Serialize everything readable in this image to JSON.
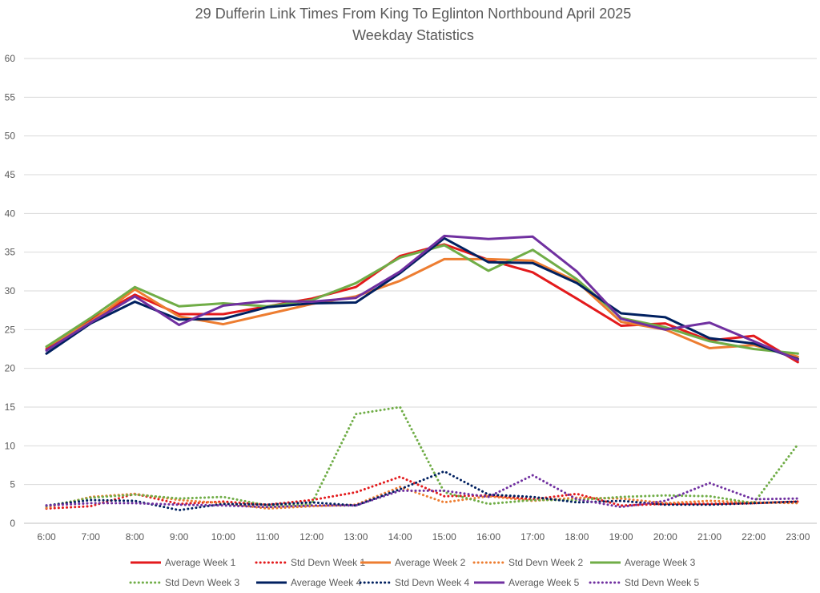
{
  "chart_data": {
    "type": "line",
    "title": "29 Dufferin Link Times From King To Eglinton Northbound April 2025",
    "subtitle": "Weekday Statistics",
    "xlabel": "",
    "ylabel": "",
    "ylim": [
      0,
      60
    ],
    "yticks": [
      0,
      5,
      10,
      15,
      20,
      25,
      30,
      35,
      40,
      45,
      50,
      55,
      60
    ],
    "grid": true,
    "legend_position": "bottom",
    "categories": [
      "6:00",
      "7:00",
      "8:00",
      "9:00",
      "10:00",
      "11:00",
      "12:00",
      "13:00",
      "14:00",
      "15:00",
      "16:00",
      "17:00",
      "18:00",
      "19:00",
      "20:00",
      "21:00",
      "22:00",
      "23:00"
    ],
    "series": [
      {
        "name": "Average Week 1",
        "style": "solid",
        "color": "#e31a1c",
        "values": [
          22.5,
          26.3,
          29.5,
          27.0,
          27.0,
          28.0,
          29.0,
          30.5,
          34.5,
          36.0,
          34.0,
          32.4,
          29.0,
          25.5,
          25.8,
          23.6,
          24.2,
          20.8
        ]
      },
      {
        "name": "Std Devn Week 1",
        "style": "dotted",
        "color": "#e31a1c",
        "values": [
          1.9,
          2.2,
          3.8,
          2.5,
          2.8,
          2.4,
          3.0,
          4.0,
          6.0,
          3.5,
          3.6,
          3.1,
          3.8,
          2.3,
          2.5,
          2.5,
          2.6,
          2.8
        ]
      },
      {
        "name": "Average Week 2",
        "style": "solid",
        "color": "#ed7d31",
        "values": [
          22.8,
          26.0,
          30.2,
          26.7,
          25.7,
          27.0,
          28.3,
          29.3,
          31.3,
          34.1,
          34.1,
          33.9,
          31.2,
          26.0,
          25.0,
          22.6,
          23.0,
          21.5
        ]
      },
      {
        "name": "Std Devn Week 2",
        "style": "dotted",
        "color": "#ed7d31",
        "values": [
          2.0,
          3.4,
          3.8,
          3.0,
          2.6,
          1.9,
          2.2,
          2.4,
          4.7,
          2.7,
          3.5,
          2.9,
          3.3,
          3.2,
          2.6,
          2.9,
          2.7,
          2.6
        ]
      },
      {
        "name": "Average Week 3",
        "style": "solid",
        "color": "#70ad47",
        "values": [
          22.8,
          26.5,
          30.5,
          28.0,
          28.4,
          28.0,
          28.8,
          31.0,
          34.3,
          35.9,
          32.6,
          35.3,
          31.5,
          26.5,
          25.3,
          23.5,
          22.5,
          21.9
        ]
      },
      {
        "name": "Std Devn Week 3",
        "style": "dotted",
        "color": "#70ad47",
        "values": [
          2.2,
          3.3,
          3.7,
          3.2,
          3.4,
          2.3,
          2.5,
          14.1,
          15.0,
          4.0,
          2.5,
          3.0,
          3.0,
          3.4,
          3.6,
          3.5,
          2.6,
          10.2
        ]
      },
      {
        "name": "Average Week 4",
        "style": "solid",
        "color": "#002060",
        "values": [
          21.9,
          25.8,
          28.6,
          26.3,
          26.4,
          27.9,
          28.4,
          28.5,
          32.3,
          36.8,
          33.7,
          33.6,
          31.0,
          27.1,
          26.6,
          23.9,
          23.2,
          21.2
        ]
      },
      {
        "name": "Std Devn Week 4",
        "style": "dotted",
        "color": "#002060",
        "values": [
          2.3,
          3.0,
          2.9,
          1.7,
          2.5,
          2.4,
          2.7,
          2.3,
          4.4,
          6.7,
          3.7,
          3.4,
          2.7,
          2.9,
          2.4,
          2.4,
          2.6,
          2.8
        ]
      },
      {
        "name": "Average Week 5",
        "style": "solid",
        "color": "#7030a0",
        "values": [
          22.3,
          25.9,
          29.3,
          25.6,
          28.1,
          28.7,
          28.6,
          29.1,
          32.5,
          37.1,
          36.7,
          37.0,
          32.5,
          26.4,
          25.0,
          25.9,
          23.5,
          21.1
        ]
      },
      {
        "name": "Std Devn Week 5",
        "style": "dotted",
        "color": "#7030a0",
        "values": [
          2.3,
          2.6,
          2.6,
          2.4,
          2.3,
          2.1,
          2.3,
          2.3,
          4.2,
          4.2,
          3.4,
          6.2,
          3.1,
          2.1,
          2.9,
          5.2,
          3.1,
          3.2
        ]
      }
    ]
  }
}
